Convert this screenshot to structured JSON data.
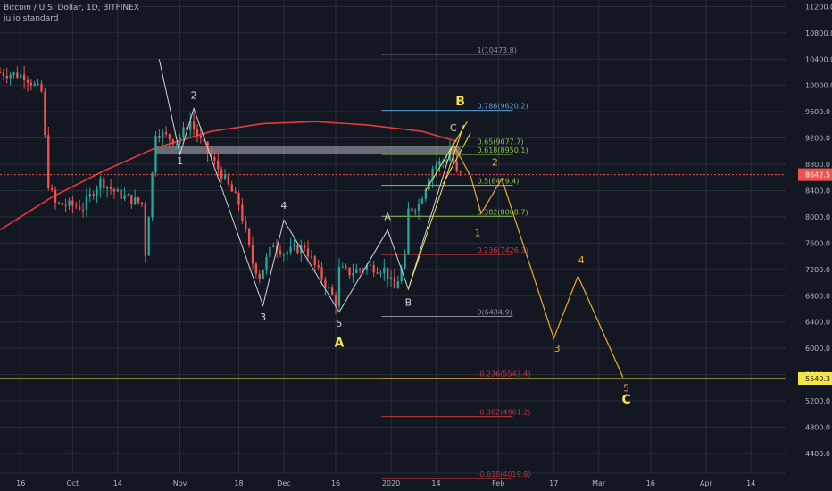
{
  "header": {
    "title": "Bitcoin / U.S. Dollar, 1D, BITFINEX",
    "indicator": "julio standard"
  },
  "colors": {
    "background": "#131722",
    "grid": "#2a2e39",
    "up": "#26a69a",
    "down": "#ef5350",
    "white_lines": "#d1d4dc",
    "moving_average": "#e53935",
    "yellow": "#f5e44a",
    "orange": "#f0a530",
    "fib_blue": "#5aa0d8",
    "fib_green": "#8bc34a",
    "fib_red": "#c0393b",
    "fib_gray": "#8a8e99"
  },
  "chart_data": {
    "type": "candlestick",
    "symbol": "BTCUSD",
    "interval": "1D",
    "exchange": "BITFINEX",
    "ylim": [
      4100,
      11300
    ],
    "y_ticks": [
      11200,
      10800,
      10400,
      10000,
      9600,
      9200,
      8800,
      8400,
      8000,
      7600,
      7200,
      6800,
      6400,
      6000,
      5600,
      5200,
      4800,
      4400
    ],
    "y_tick_labels": [
      "11200.0",
      "10800.0",
      "10400.0",
      "10000.0",
      "9600.0",
      "9200.0",
      "8800.0",
      "8400.0",
      "8000.0",
      "7600.0",
      "7200.0",
      "6800.0",
      "6400.0",
      "6000.0",
      "5600.0",
      "5200.0",
      "4800.0",
      "4400.0"
    ],
    "x_start": "2019-09-10",
    "x_end": "2020-04-24",
    "x_ticks": [
      {
        "date": "2019-09-16",
        "label": "16"
      },
      {
        "date": "2019-10-01",
        "label": "Oct"
      },
      {
        "date": "2019-10-14",
        "label": "14"
      },
      {
        "date": "2019-11-01",
        "label": "Nov"
      },
      {
        "date": "2019-11-18",
        "label": "18"
      },
      {
        "date": "2019-12-01",
        "label": "Dec"
      },
      {
        "date": "2019-12-16",
        "label": "16"
      },
      {
        "date": "2020-01-01",
        "label": "2020"
      },
      {
        "date": "2020-01-14",
        "label": "14"
      },
      {
        "date": "2020-02-01",
        "label": "Feb"
      },
      {
        "date": "2020-02-17",
        "label": "17"
      },
      {
        "date": "2020-03-01",
        "label": "Mar"
      },
      {
        "date": "2020-03-16",
        "label": "16"
      },
      {
        "date": "2020-04-01",
        "label": "Apr"
      },
      {
        "date": "2020-04-14",
        "label": "14"
      }
    ],
    "price_keypoints": [
      [
        "2019-09-10",
        10200
      ],
      [
        "2019-09-18",
        10150
      ],
      [
        "2019-09-23",
        9900
      ],
      [
        "2019-09-25",
        8500
      ],
      [
        "2019-09-27",
        8200
      ],
      [
        "2019-10-05",
        8150
      ],
      [
        "2019-10-10",
        8550
      ],
      [
        "2019-10-15",
        8350
      ],
      [
        "2019-10-22",
        8200
      ],
      [
        "2019-10-23",
        7450
      ],
      [
        "2019-10-25",
        8650
      ],
      [
        "2019-10-26",
        9300
      ],
      [
        "2019-11-01",
        9150
      ],
      [
        "2019-11-05",
        9450
      ],
      [
        "2019-11-08",
        9150
      ],
      [
        "2019-11-14",
        8650
      ],
      [
        "2019-11-19",
        8200
      ],
      [
        "2019-11-23",
        7300
      ],
      [
        "2019-11-25",
        7100
      ],
      [
        "2019-11-29",
        7600
      ],
      [
        "2019-12-02",
        7450
      ],
      [
        "2019-12-08",
        7550
      ],
      [
        "2019-12-11",
        7250
      ],
      [
        "2019-12-17",
        6700
      ],
      [
        "2019-12-18",
        7200
      ],
      [
        "2019-12-21",
        7150
      ],
      [
        "2019-12-26",
        7250
      ],
      [
        "2019-12-31",
        7200
      ],
      [
        "2020-01-03",
        6900
      ],
      [
        "2020-01-06",
        7350
      ],
      [
        "2020-01-07",
        8100
      ],
      [
        "2020-01-10",
        8200
      ],
      [
        "2020-01-14",
        8750
      ],
      [
        "2020-01-18",
        8900
      ],
      [
        "2020-01-19",
        9050
      ],
      [
        "2020-01-21",
        8650
      ]
    ],
    "moving_average": {
      "name": "julio standard",
      "points": [
        [
          "2019-09-10",
          7800
        ],
        [
          "2019-09-25",
          8300
        ],
        [
          "2019-10-10",
          8700
        ],
        [
          "2019-10-25",
          9050
        ],
        [
          "2019-11-10",
          9300
        ],
        [
          "2019-11-25",
          9420
        ],
        [
          "2019-12-10",
          9450
        ],
        [
          "2019-12-25",
          9400
        ],
        [
          "2020-01-10",
          9300
        ],
        [
          "2020-01-20",
          9150
        ]
      ]
    },
    "current_price": {
      "value": 8642.5,
      "label": "8642.5"
    },
    "horizontal_line": {
      "value": 5540.3,
      "label": "5540.3"
    },
    "resistance_zone": {
      "from_date": "2019-10-25",
      "to_date": "2020-01-21",
      "low": 8950,
      "high": 9077
    },
    "fibonacci": {
      "from_date": "2020-01-06",
      "to_date": "2020-01-22",
      "levels": [
        {
          "label": "1(10473.8)",
          "price": 10473.8,
          "color": "fib_gray"
        },
        {
          "label": "0.786(9620.2)",
          "price": 9620.2,
          "color": "fib_blue"
        },
        {
          "label": "0.65(9077.7)",
          "price": 9077.7,
          "color": "fib_green"
        },
        {
          "label": "0.618(8950.1)",
          "price": 8950.1,
          "color": "fib_green"
        },
        {
          "label": "0.5(8479.4)",
          "price": 8479.4,
          "color": "fib_green"
        },
        {
          "label": "0.382(8008.7)",
          "price": 8008.7,
          "color": "fib_green"
        },
        {
          "label": "0.236(7426.3)",
          "price": 7426.3,
          "color": "fib_red"
        },
        {
          "label": "0(6484.9)",
          "price": 6484.9,
          "color": "fib_gray"
        },
        {
          "label": "-0.236(5543.4)",
          "price": 5543.4,
          "color": "fib_red"
        },
        {
          "label": "-0.382(4961.2)",
          "price": 4961.2,
          "color": "fib_red"
        },
        {
          "label": "-0.618(4019.8)",
          "price": 4019.8,
          "color": "fib_red"
        }
      ]
    },
    "wave_path": [
      [
        "2019-10-26",
        10400
      ],
      [
        "2019-11-01",
        8950
      ],
      [
        "2019-11-05",
        9650
      ],
      [
        "2019-11-25",
        6650
      ],
      [
        "2019-12-01",
        7950
      ],
      [
        "2019-12-17",
        6550
      ],
      [
        "2019-12-31",
        7800
      ],
      [
        "2020-01-06",
        6900
      ],
      [
        "2020-01-19",
        9130
      ]
    ],
    "wave_labels": [
      {
        "text": "2",
        "date": "2019-11-05",
        "price": 9800,
        "color": "white_lines"
      },
      {
        "text": "1",
        "date": "2019-11-01",
        "price": 8800,
        "color": "white_lines"
      },
      {
        "text": "3",
        "date": "2019-11-25",
        "price": 6420,
        "color": "white_lines"
      },
      {
        "text": "4",
        "date": "2019-12-01",
        "price": 8120,
        "color": "white_lines"
      },
      {
        "text": "5",
        "date": "2019-12-17",
        "price": 6330,
        "color": "white_lines"
      },
      {
        "text": "A",
        "date": "2019-12-31",
        "price": 7950,
        "color": "white_lines"
      },
      {
        "text": "B",
        "date": "2020-01-06",
        "price": 6650,
        "color": "white_lines"
      },
      {
        "text": "C",
        "date": "2020-01-19",
        "price": 9300,
        "color": "white_lines"
      },
      {
        "text": "A",
        "date": "2019-12-17",
        "price": 6020,
        "color": "yellow"
      },
      {
        "text": "B",
        "date": "2020-01-21",
        "price": 9700,
        "color": "yellow"
      },
      {
        "text": "C",
        "date": "2020-03-09",
        "price": 5160,
        "color": "yellow"
      },
      {
        "text": "1",
        "date": "2020-01-26",
        "price": 7710,
        "color": "orange"
      },
      {
        "text": "2",
        "date": "2020-01-31",
        "price": 8780,
        "color": "orange"
      },
      {
        "text": "3",
        "date": "2020-02-18",
        "price": 5950,
        "color": "orange"
      },
      {
        "text": "4",
        "date": "2020-02-25",
        "price": 7290,
        "color": "orange"
      },
      {
        "text": "5",
        "date": "2020-03-09",
        "price": 5340,
        "color": "orange"
      }
    ],
    "channel_lines": [
      {
        "points": [
          [
            "2020-01-06",
            6900
          ],
          [
            "2020-01-22",
            9400
          ]
        ]
      },
      {
        "points": [
          [
            "2020-01-11",
            8400
          ],
          [
            "2020-01-23",
            9450
          ]
        ]
      },
      {
        "points": [
          [
            "2020-01-16",
            8500
          ],
          [
            "2020-01-24",
            9280
          ]
        ]
      }
    ],
    "projection_path": [
      [
        "2020-01-19",
        9100
      ],
      [
        "2020-01-24",
        8620
      ],
      [
        "2020-01-27",
        8050
      ],
      [
        "2020-02-02",
        8580
      ],
      [
        "2020-02-17",
        6150
      ],
      [
        "2020-02-24",
        7100
      ],
      [
        "2020-03-08",
        5560
      ]
    ]
  }
}
